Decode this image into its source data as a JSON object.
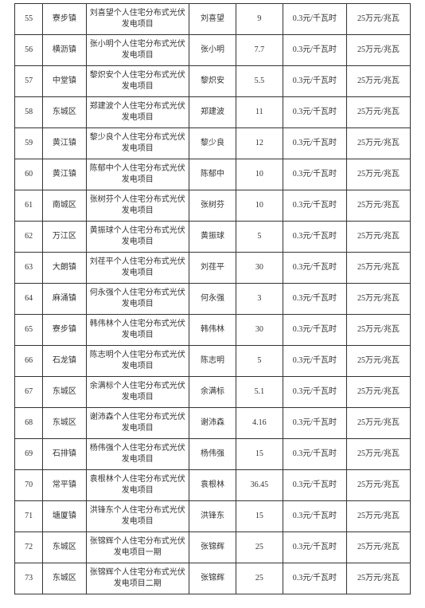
{
  "rate_text": "0.3元/千瓦时",
  "subsidy_text": "25万元/兆瓦",
  "rows": [
    {
      "idx": "55",
      "town": "寮步镇",
      "project": "刘喜望个人住宅分布式光伏发电项目",
      "owner": "刘喜望",
      "cap": "9"
    },
    {
      "idx": "56",
      "town": "横沥镇",
      "project": "张小明个人住宅分布式光伏发电项目",
      "owner": "张小明",
      "cap": "7.7"
    },
    {
      "idx": "57",
      "town": "中堂镇",
      "project": "黎炽安个人住宅分布式光伏发电项目",
      "owner": "黎炽安",
      "cap": "5.5"
    },
    {
      "idx": "58",
      "town": "东城区",
      "project": "郑建波个人住宅分布式光伏发电项目",
      "owner": "郑建波",
      "cap": "11"
    },
    {
      "idx": "59",
      "town": "黄江镇",
      "project": "黎少良个人住宅分布式光伏发电项目",
      "owner": "黎少良",
      "cap": "12"
    },
    {
      "idx": "60",
      "town": "黄江镇",
      "project": "陈郁中个人住宅分布式光伏发电项目",
      "owner": "陈郁中",
      "cap": "10"
    },
    {
      "idx": "61",
      "town": "南城区",
      "project": "张树芬个人住宅分布式光伏发电项目",
      "owner": "张树芬",
      "cap": "10"
    },
    {
      "idx": "62",
      "town": "万江区",
      "project": "黄振球个人住宅分布式光伏发电项目",
      "owner": "黄振球",
      "cap": "5"
    },
    {
      "idx": "63",
      "town": "大朗镇",
      "project": "刘荏平个人住宅分布式光伏发电项目",
      "owner": "刘荏平",
      "cap": "30"
    },
    {
      "idx": "64",
      "town": "麻涌镇",
      "project": "何永强个人住宅分布式光伏发电项目",
      "owner": "何永强",
      "cap": "3"
    },
    {
      "idx": "65",
      "town": "寮步镇",
      "project": "韩伟林个人住宅分布式光伏发电项目",
      "owner": "韩伟林",
      "cap": "30"
    },
    {
      "idx": "66",
      "town": "石龙镇",
      "project": "陈志明个人住宅分布式光伏发电项目",
      "owner": "陈志明",
      "cap": "5"
    },
    {
      "idx": "67",
      "town": "东城区",
      "project": "余满标个人住宅分布式光伏发电项目",
      "owner": "余满标",
      "cap": "5.1"
    },
    {
      "idx": "68",
      "town": "东城区",
      "project": "谢沛森个人住宅分布式光伏发电项目",
      "owner": "谢沛森",
      "cap": "4.16"
    },
    {
      "idx": "69",
      "town": "石排镇",
      "project": "杨伟强个人住宅分布式光伏发电项目",
      "owner": "杨伟强",
      "cap": "15"
    },
    {
      "idx": "70",
      "town": "常平镇",
      "project": "袁根林个人住宅分布式光伏发电项目",
      "owner": "袁根林",
      "cap": "36.45"
    },
    {
      "idx": "71",
      "town": "塘厦镇",
      "project": "洪锋东个人住宅分布式光伏发电项目",
      "owner": "洪锋东",
      "cap": "15"
    },
    {
      "idx": "72",
      "town": "东城区",
      "project": "张锦辉个人住宅分布式光伏发电项目一期",
      "owner": "张锦辉",
      "cap": "25"
    },
    {
      "idx": "73",
      "town": "东城区",
      "project": "张锦辉个人住宅分布式光伏发电项目二期",
      "owner": "张锦辉",
      "cap": "25"
    }
  ]
}
